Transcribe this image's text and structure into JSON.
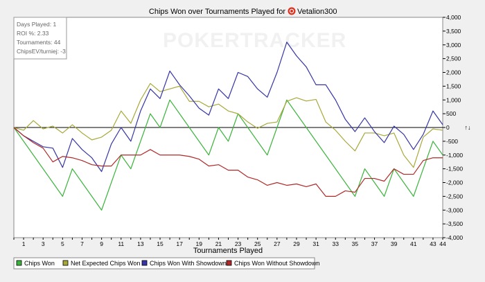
{
  "chart_data": {
    "type": "line",
    "title": "Chips Won over Tournaments Played for",
    "player": "Vetalion300",
    "watermark": "POKERTRACKER",
    "xlabel": "Tournaments Played",
    "ylabel": "",
    "y_unit_mark": "↑↓",
    "xlim": [
      0,
      44
    ],
    "ylim": [
      -4000,
      4000
    ],
    "x_ticks": [
      1,
      3,
      5,
      7,
      9,
      11,
      13,
      15,
      17,
      19,
      21,
      23,
      25,
      27,
      29,
      31,
      33,
      35,
      37,
      39,
      41,
      43,
      44
    ],
    "y_ticks": [
      "4,000",
      "3,500",
      "3,000",
      "2,500",
      "2,000",
      "1,500",
      "1,000",
      "500",
      "0",
      "-500",
      "-1,000",
      "-1,500",
      "-2,000",
      "-2,500",
      "-3,000",
      "-3,500",
      "-4,000"
    ],
    "y_tick_values": [
      4000,
      3500,
      3000,
      2500,
      2000,
      1500,
      1000,
      500,
      0,
      -500,
      -1000,
      -1500,
      -2000,
      -2500,
      -3000,
      -3500,
      -4000
    ],
    "grid": false,
    "legend_position": "bottom",
    "stats_box": [
      "Days Played: 1",
      "ROI %: 2.33",
      "Tournaments: 44",
      "ChipsEV/turniej: -3"
    ],
    "x": [
      0,
      1,
      2,
      3,
      4,
      5,
      6,
      7,
      8,
      9,
      10,
      11,
      12,
      13,
      14,
      15,
      16,
      17,
      18,
      19,
      20,
      21,
      22,
      23,
      24,
      25,
      26,
      27,
      28,
      29,
      30,
      31,
      32,
      33,
      34,
      35,
      36,
      37,
      38,
      39,
      40,
      41,
      42,
      43,
      44
    ],
    "series": [
      {
        "name": "Chips Won",
        "color": "#3cb43c",
        "values": [
          0,
          -500,
          -1000,
          -1500,
          -2000,
          -2500,
          -1500,
          -2000,
          -2500,
          -3000,
          -2000,
          -1000,
          -1500,
          -500,
          500,
          0,
          1000,
          500,
          0,
          -500,
          -1000,
          0,
          -500,
          500,
          0,
          -500,
          -1000,
          0,
          1000,
          500,
          0,
          -500,
          -1000,
          -1500,
          -2000,
          -2500,
          -1500,
          -2000,
          -2500,
          -1500,
          -2000,
          -2500,
          -1500,
          -500,
          -1000
        ]
      },
      {
        "name": "Net Expected Chips Won",
        "color": "#a8a83a",
        "values": [
          0,
          -100,
          250,
          -50,
          50,
          -200,
          100,
          -200,
          -450,
          -350,
          -100,
          600,
          150,
          1000,
          1600,
          1300,
          1400,
          1500,
          950,
          950,
          750,
          850,
          600,
          500,
          200,
          -30,
          150,
          200,
          950,
          1080,
          960,
          1020,
          200,
          -100,
          -500,
          -850,
          -200,
          -200,
          -300,
          -200,
          -1000,
          -1450,
          -350,
          -50,
          -100
        ]
      },
      {
        "name": "Chips Won With Showdown",
        "color": "#3535a5",
        "values": [
          0,
          -300,
          -500,
          -700,
          -750,
          -1450,
          -400,
          -800,
          -1100,
          -1600,
          -600,
          0,
          -500,
          600,
          1400,
          1050,
          2050,
          1550,
          1150,
          700,
          450,
          1400,
          1050,
          2000,
          1850,
          1400,
          1100,
          2000,
          3100,
          2600,
          2200,
          1550,
          1550,
          1000,
          300,
          -150,
          350,
          -150,
          -550,
          50,
          -250,
          -800,
          -250,
          600,
          100
        ]
      },
      {
        "name": "Chips Won Without Showdown",
        "color": "#b02828",
        "values": [
          0,
          -300,
          -550,
          -750,
          -1250,
          -1050,
          -1100,
          -1200,
          -1350,
          -1400,
          -1400,
          -1000,
          -1000,
          -1000,
          -800,
          -1000,
          -1000,
          -1000,
          -1050,
          -1150,
          -1400,
          -1350,
          -1550,
          -1550,
          -1800,
          -1900,
          -2100,
          -2000,
          -2100,
          -2050,
          -2150,
          -2050,
          -2500,
          -2500,
          -2300,
          -2350,
          -1850,
          -1850,
          -1950,
          -1500,
          -1700,
          -1700,
          -1200,
          -1100,
          -1100
        ]
      }
    ]
  }
}
